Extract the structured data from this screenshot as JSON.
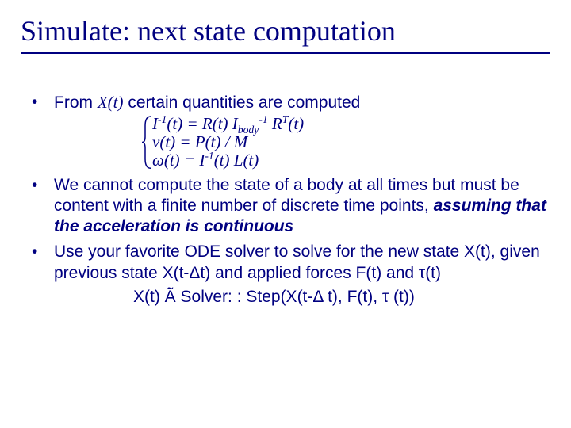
{
  "colors": {
    "text": "#000080",
    "background": "#ffffff",
    "rule": "#000080"
  },
  "typography": {
    "title_font": "Times New Roman",
    "title_size_pt": 36,
    "body_font": "Arial",
    "body_size_pt": 21,
    "math_font": "Times New Roman (italic)"
  },
  "title": "Simulate: next state computation",
  "bullet1_prefix": "From ",
  "bullet1_xt": "X(t)",
  "bullet1_suffix": " certain quantities are computed",
  "eq1_html": "I<sup>-1</sup>(t) = R(t) I<sub>body</sub><sup>-1</sup> R<sup>T</sup>(t)",
  "eq2_html": "v(t) = P(t) / M",
  "eq3_html": "ω(t) = I<sup>-1</sup>(t) L(t)",
  "bullet2_plain": "We cannot compute the state of a body at all times but must be content with a finite number of discrete time points, ",
  "bullet2_em": "assuming that the acceleration is continuous",
  "bullet3": "Use your favorite ODE solver to solve for the new state X(t), given previous state X(t-Δt) and applied forces F(t) and τ(t)",
  "solver_line": "X(t) Ã Solver: : Step(X(t-Δ t), F(t), τ (t))"
}
